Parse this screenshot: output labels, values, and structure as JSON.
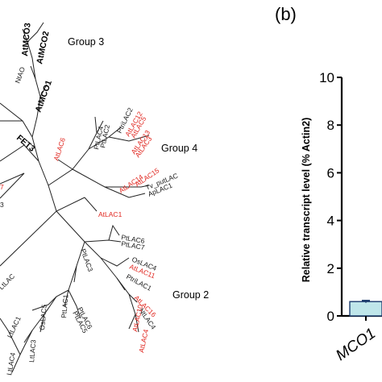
{
  "tree": {
    "group_labels": {
      "group3": "Group 3",
      "group4": "Group 4",
      "group2": "Group 2"
    },
    "leaves": {
      "AtMCO3": "AtMCO3",
      "AtMCO2": "AtMCO2",
      "AtMCO1": "AtMCO1",
      "NtAO": "NtAO",
      "FET3": "FET3",
      "AtLAC6": "AtLAC6",
      "PtLAC4": "PtLAC4",
      "PtLAC2": "PtLAC2",
      "PtriLAC2": "PtriLAC2",
      "AtLAC12": "AtLAC12",
      "AtLAC5": "AtLAC5",
      "AtLAC13": "AtLAC13",
      "AtLAC3": "AtLAC3",
      "AtLAC14": "AtLAC14",
      "AtLAC15": "AtLAC15",
      "TvputLAC": "Tv_putLAC",
      "ApLAC1": "ApLAC1",
      "AtLAC1": "AtLAC1",
      "PtLAC6": "PtLAC6",
      "PtLAC7": "PtLAC7",
      "OsLAC4": "OsLAC4",
      "AtLAC11": "AtLAC11",
      "PtriLAC1": "PtriLAC1",
      "PtLAC3": "PtLAC3",
      "AtLAC16": "AtLAC16",
      "NtLAC4": "NtLAC4",
      "AtLAC10": "AtLAC10",
      "AtLAC4": "AtLAC4",
      "PtLAC6b": "PtLAC6",
      "PtLAC5": "PtLAC5",
      "PtLAC1": "PtLAC1",
      "OsLAC5": "OsLAC5",
      "LtLAC3": "LtLAC3",
      "LtLAC4": "LtLAC4",
      "LtLAC1": "LtLAC1",
      "LtLAC_top": "LtLAC",
      "clip1": "7",
      "clip2": "3"
    }
  },
  "panel_b": {
    "panel_label": "(b)",
    "colors": {
      "bar_fill": "#bfe6ea",
      "bar_stroke": "#1d3c6e",
      "axis": "#000000"
    },
    "chart_data": {
      "type": "bar",
      "ylabel": "Relative transcript level (% Actin2)",
      "ylim": [
        0,
        10
      ],
      "yticks": [
        "0",
        "2",
        "4",
        "6",
        "8",
        "10"
      ],
      "categories": [
        "MCO1"
      ],
      "values": [
        0.6
      ],
      "error": [
        0.05
      ]
    }
  }
}
